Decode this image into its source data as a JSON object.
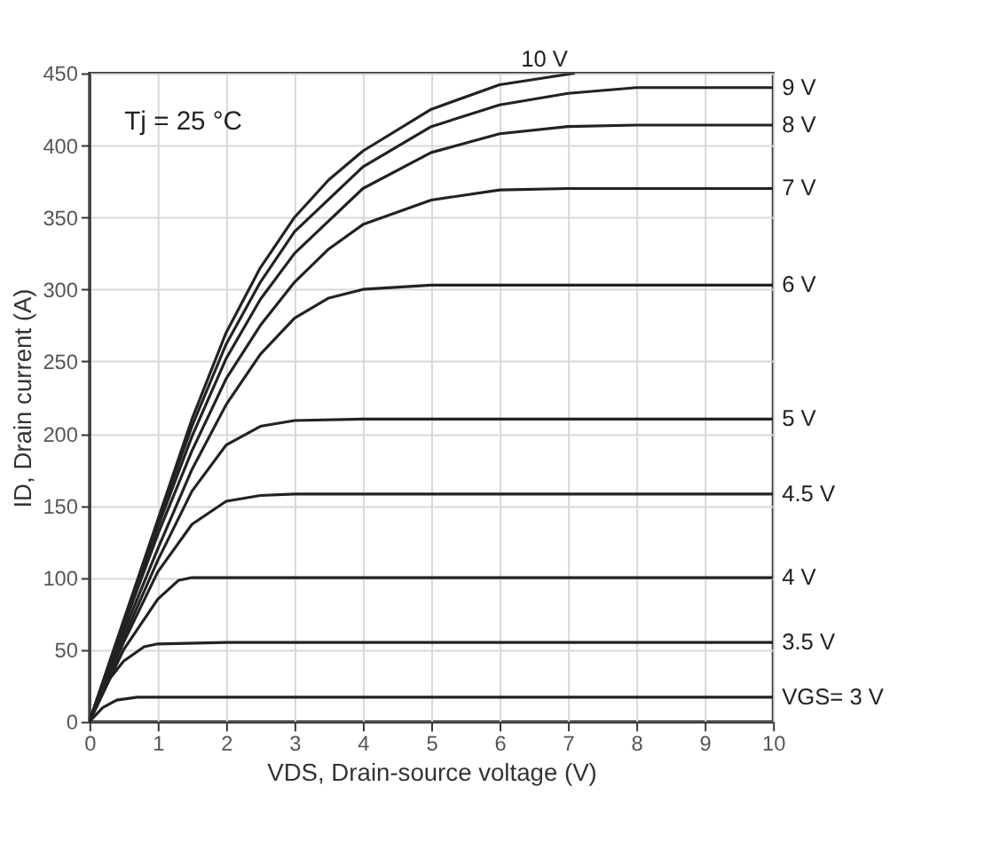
{
  "chart_data": {
    "type": "line",
    "xlabel": "VDS, Drain-source voltage (V)",
    "ylabel": "ID, Drain current (A)",
    "annotations": [
      "Tj = 25 °C"
    ],
    "xlim": [
      0,
      10
    ],
    "xticks": [
      0,
      1,
      2,
      3,
      4,
      5,
      6,
      7,
      8,
      9,
      10
    ],
    "ylim": [
      0,
      450
    ],
    "yticks": [
      0,
      50,
      100,
      150,
      200,
      250,
      300,
      350,
      400,
      450
    ],
    "grid": true,
    "legend": false,
    "marker": "none",
    "line_style": "solid",
    "series": [
      {
        "name": "10 V",
        "color": "#222222",
        "x": [
          0,
          0.5,
          1,
          1.5,
          2,
          2.5,
          3,
          3.5,
          4,
          5,
          6,
          7.1
        ],
        "values": [
          0,
          70,
          140,
          210,
          270,
          315,
          350,
          376,
          396,
          425,
          442,
          450
        ]
      },
      {
        "name": "9 V",
        "color": "#222222",
        "x": [
          0,
          0.5,
          1,
          1.5,
          2,
          2.5,
          3,
          4,
          5,
          6,
          7,
          8,
          10
        ],
        "values": [
          0,
          70,
          138,
          205,
          262,
          305,
          340,
          385,
          413,
          428,
          436,
          440,
          440
        ]
      },
      {
        "name": "8 V",
        "color": "#222222",
        "x": [
          0,
          0.5,
          1,
          1.5,
          2,
          2.5,
          3,
          4,
          5,
          6,
          7,
          8,
          10
        ],
        "values": [
          0,
          68,
          135,
          198,
          252,
          293,
          325,
          370,
          395,
          408,
          413,
          414,
          414
        ]
      },
      {
        "name": "7 V",
        "color": "#222222",
        "x": [
          0,
          0.5,
          1,
          1.5,
          2,
          2.5,
          3,
          3.5,
          4,
          5,
          6,
          7,
          10
        ],
        "values": [
          0,
          66,
          130,
          188,
          238,
          275,
          305,
          328,
          345,
          362,
          369,
          370,
          370
        ]
      },
      {
        "name": "6 V",
        "color": "#222222",
        "x": [
          0,
          0.5,
          1,
          1.5,
          2,
          2.5,
          3,
          3.5,
          4,
          5,
          10
        ],
        "values": [
          0,
          62,
          120,
          175,
          220,
          255,
          280,
          294,
          300,
          303,
          303
        ]
      },
      {
        "name": "5 V",
        "color": "#222222",
        "x": [
          0,
          0.5,
          1,
          1.5,
          2,
          2.5,
          3,
          4,
          10
        ],
        "values": [
          0,
          58,
          112,
          160,
          192,
          205,
          209,
          210,
          210
        ]
      },
      {
        "name": "4.5 V",
        "color": "#222222",
        "x": [
          0,
          0.5,
          1,
          1.5,
          2,
          2.5,
          3,
          10
        ],
        "values": [
          0,
          55,
          104,
          137,
          153,
          157,
          158,
          158
        ]
      },
      {
        "name": "4 V",
        "color": "#222222",
        "x": [
          0,
          0.5,
          1,
          1.3,
          1.5,
          10
        ],
        "values": [
          0,
          50,
          85,
          98,
          100,
          100
        ]
      },
      {
        "name": "3.5 V",
        "color": "#222222",
        "x": [
          0,
          0.3,
          0.5,
          0.8,
          1,
          2,
          10
        ],
        "values": [
          0,
          30,
          42,
          52,
          54,
          55,
          55
        ]
      },
      {
        "name": "VGS= 3 V",
        "color": "#222222",
        "x": [
          0,
          0.2,
          0.4,
          0.7,
          10
        ],
        "values": [
          0,
          10,
          15,
          17,
          17
        ]
      }
    ]
  }
}
